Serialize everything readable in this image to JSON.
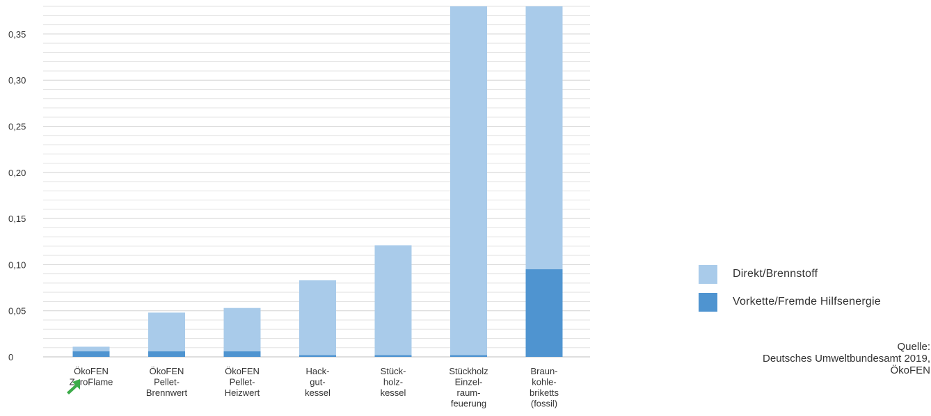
{
  "chart_data": {
    "type": "bar",
    "stacked": true,
    "categories": [
      [
        "ÖkoFEN",
        "ZeroFlame"
      ],
      [
        "ÖkoFEN",
        "Pellet-",
        "Brennwert"
      ],
      [
        "ÖkoFEN",
        "Pellet-",
        "Heizwert"
      ],
      [
        "Hack-",
        "gut-",
        "kessel"
      ],
      [
        "Stück-",
        "holz-",
        "kessel"
      ],
      [
        "Stückholz",
        "Einzel-",
        "raum-",
        "feuerung"
      ],
      [
        "Braun-",
        "kohle-",
        "briketts",
        "(fossil)"
      ]
    ],
    "series": [
      {
        "name": "Vorkette/Fremde Hilfsenergie",
        "color": "#4f94d0",
        "values": [
          0.006,
          0.006,
          0.006,
          0.002,
          0.002,
          0.002,
          0.095
        ]
      },
      {
        "name": "Direkt/Brennstoff",
        "color": "#a9cbea",
        "values": [
          0.005,
          0.042,
          0.047,
          0.081,
          0.119,
          0.378,
          0.285
        ]
      }
    ],
    "yticks": [
      "0",
      "0,05",
      "0,10",
      "0,15",
      "0,20",
      "0,25",
      "0,30",
      "0,35"
    ],
    "ylim": [
      0,
      0.38
    ],
    "grid": true,
    "legend_position": "right"
  },
  "legend": [
    {
      "label": "Direkt/Brennstoff",
      "color": "#a9cbea"
    },
    {
      "label": "Vorkette/Fremde Hilfsenergie",
      "color": "#4f94d0"
    }
  ],
  "source": {
    "line1": "Quelle:",
    "line2": "Deutsches Umweltbundesamt 2019,",
    "line3": "ÖkoFEN"
  },
  "marker_icon": "green-arrow-icon",
  "marker_color": "#3dab4a"
}
